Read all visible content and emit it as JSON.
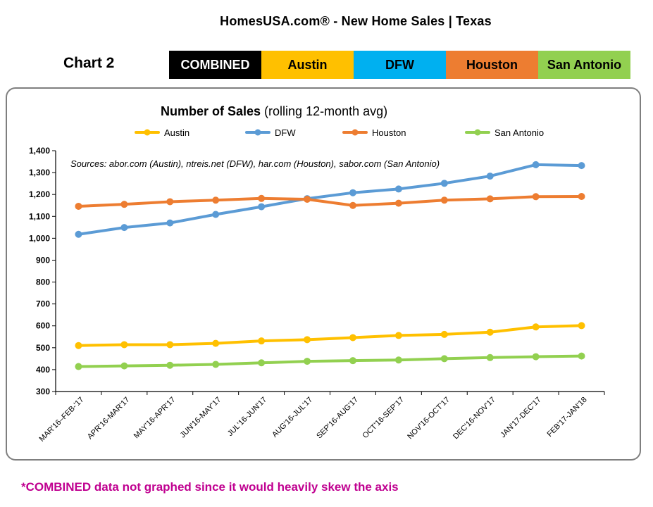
{
  "page": {
    "title": "HomesUSA.com® - New Home Sales | Texas",
    "chart_label": "Chart 2",
    "tabs": [
      {
        "label": "COMBINED",
        "color": "#000000"
      },
      {
        "label": "Austin",
        "color": "#ffc000"
      },
      {
        "label": "DFW",
        "color": "#00b0f0"
      },
      {
        "label": "Houston",
        "color": "#ed7d31"
      },
      {
        "label": "San Antonio",
        "color": "#92d050"
      }
    ],
    "footnote": "*COMBINED data not graphed since it would heavily skew the axis"
  },
  "chart_data": {
    "type": "line",
    "title_bold": "Number of Sales",
    "title_rest": " (rolling 12-month avg)",
    "annotation": "Sources:  abor.com (Austin), ntreis.net (DFW), har.com (Houston), sabor.com (San Antonio)",
    "xlabel": "",
    "ylabel": "",
    "ylim": [
      300,
      1400
    ],
    "yticks": [
      300,
      400,
      500,
      600,
      700,
      800,
      900,
      1000,
      1100,
      1200,
      1300,
      1400
    ],
    "ytick_labels": [
      "300",
      "400",
      "500",
      "600",
      "700",
      "800",
      "900",
      "1,000",
      "1,100",
      "1,200",
      "1,300",
      "1,400"
    ],
    "grid": false,
    "legend": "top",
    "categories": [
      "MAR'16–FEB-'17",
      "APR'16-MAR'17",
      "MAY'16-APR'17",
      "JUN'16-MAY'17",
      "JUL'16-JUN'17",
      "AUG'16-JUL'17",
      "SEP'16-AUG'17",
      "OCT'16-SEP'17",
      "NOV'16-OCT'17",
      "DEC'16-NOV'17",
      "JAN'17-DEC'17",
      "FEB'17-JAN'18"
    ],
    "series": [
      {
        "name": "Austin",
        "color": "#ffc000",
        "values": [
          510,
          514,
          514,
          520,
          531,
          537,
          546,
          556,
          561,
          571,
          595,
          601
        ]
      },
      {
        "name": "DFW",
        "color": "#5b9bd5",
        "values": [
          1018,
          1049,
          1070,
          1109,
          1144,
          1181,
          1208,
          1225,
          1251,
          1284,
          1336,
          1332
        ]
      },
      {
        "name": "Houston",
        "color": "#ed7d31",
        "values": [
          1146,
          1155,
          1167,
          1174,
          1182,
          1178,
          1150,
          1160,
          1174,
          1180,
          1190,
          1191
        ]
      },
      {
        "name": "San Antonio",
        "color": "#92d050",
        "values": [
          414,
          417,
          420,
          424,
          431,
          438,
          441,
          444,
          450,
          455,
          459,
          462
        ]
      }
    ]
  }
}
